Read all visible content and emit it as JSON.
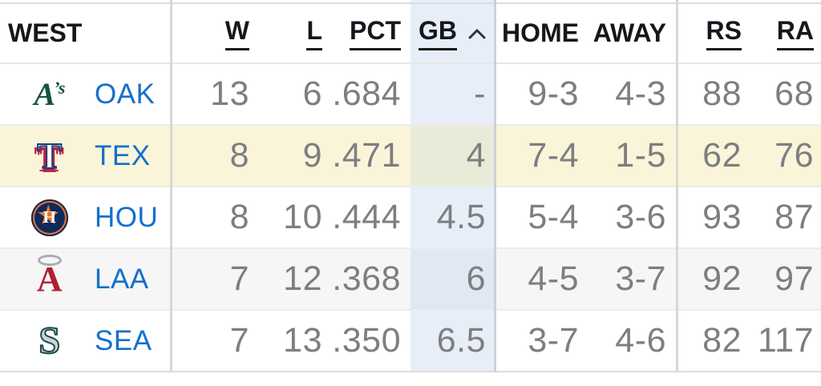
{
  "standings": {
    "division_label": "WEST",
    "sort": {
      "column": "GB",
      "direction": "asc"
    },
    "columns": [
      {
        "key": "w",
        "label": "W",
        "sortable": true,
        "sorted": false
      },
      {
        "key": "l",
        "label": "L",
        "sortable": true,
        "sorted": false
      },
      {
        "key": "pct",
        "label": "PCT",
        "sortable": true,
        "sorted": false
      },
      {
        "key": "gb",
        "label": "GB",
        "sortable": true,
        "sorted": true
      },
      {
        "key": "home",
        "label": "HOME",
        "sortable": false,
        "sorted": false
      },
      {
        "key": "away",
        "label": "AWAY",
        "sortable": false,
        "sorted": false
      },
      {
        "key": "rs",
        "label": "RS",
        "sortable": true,
        "sorted": false
      },
      {
        "key": "ra",
        "label": "RA",
        "sortable": true,
        "sorted": false
      }
    ],
    "teams": [
      {
        "abbr": "OAK",
        "logo": "athletics-logo",
        "w": "13",
        "l": "6",
        "pct": ".684",
        "gb": "-",
        "home": "9-3",
        "away": "4-3",
        "rs": "88",
        "ra": "68",
        "highlighted": false,
        "row_bg": "#ffffff",
        "gb_bg": "#e7eef8"
      },
      {
        "abbr": "TEX",
        "logo": "rangers-logo",
        "w": "8",
        "l": "9",
        "pct": ".471",
        "gb": "4",
        "home": "7-4",
        "away": "1-5",
        "rs": "62",
        "ra": "76",
        "highlighted": true,
        "row_bg": "#faf5d9",
        "gb_bg": "#e9ebd9"
      },
      {
        "abbr": "HOU",
        "logo": "astros-logo",
        "w": "8",
        "l": "10",
        "pct": ".444",
        "gb": "4.5",
        "home": "5-4",
        "away": "3-6",
        "rs": "93",
        "ra": "87",
        "highlighted": false,
        "row_bg": "#ffffff",
        "gb_bg": "#e7eef8"
      },
      {
        "abbr": "LAA",
        "logo": "angels-logo",
        "w": "7",
        "l": "12",
        "pct": ".368",
        "gb": "6",
        "home": "4-5",
        "away": "3-7",
        "rs": "92",
        "ra": "97",
        "highlighted": false,
        "row_bg": "#f6f6f7",
        "gb_bg": "#e0e8f2"
      },
      {
        "abbr": "SEA",
        "logo": "mariners-logo",
        "w": "7",
        "l": "13",
        "pct": ".350",
        "gb": "6.5",
        "home": "3-7",
        "away": "4-6",
        "rs": "82",
        "ra": "117",
        "highlighted": false,
        "row_bg": "#ffffff",
        "gb_bg": "#e7eef8"
      }
    ]
  },
  "colors": {
    "link_blue": "#1470cc",
    "number_gray": "#7d7e81",
    "header_text": "#15171c",
    "gb_column_tint": "#e7eef8",
    "highlight_yellow": "#faf5d9",
    "alt_row_gray": "#f6f6f7",
    "divider_gray": "#d8d8d8",
    "row_border_gray": "#ececec"
  }
}
